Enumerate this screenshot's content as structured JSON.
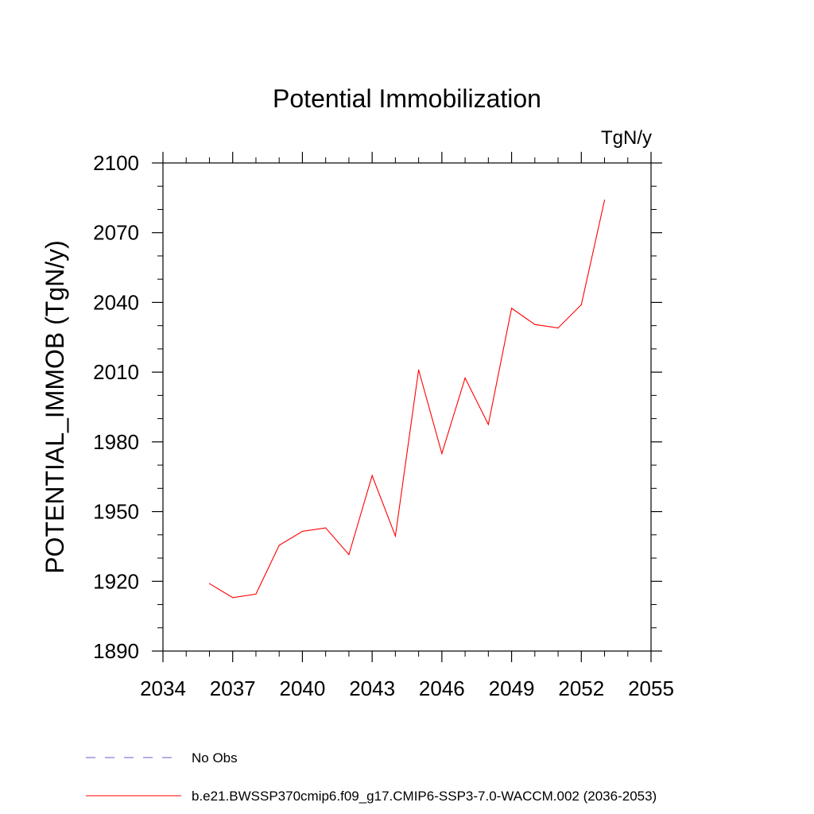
{
  "chart_data": {
    "type": "line",
    "title": "Potential Immobilization",
    "units_label": "TgN/y",
    "ylabel": "POTENTIAL_IMMOB  (TgN/y)",
    "xlabel": "",
    "xlim": [
      2034,
      2055
    ],
    "ylim": [
      1890,
      2100
    ],
    "xticks": [
      "2034",
      "2037",
      "2040",
      "2043",
      "2046",
      "2049",
      "2052",
      "2055"
    ],
    "yticks": [
      "1890",
      "1920",
      "1950",
      "1980",
      "2010",
      "2040",
      "2070",
      "2100"
    ],
    "grid": false,
    "legend_placement": "bottom",
    "series": [
      {
        "name": "b.e21.BWSSP370cmip6.f09_g17.CMIP6-SSP3-7.0-WACCM.002 (2036-2053)",
        "color": "#ff0000",
        "x": [
          2036,
          2037,
          2038,
          2039,
          2040,
          2041,
          2042,
          2043,
          2044,
          2045,
          2046,
          2047,
          2048,
          2049,
          2050,
          2051,
          2052,
          2053
        ],
        "y": [
          1919,
          1913,
          1914.5,
          1935.5,
          1941.5,
          1943,
          1931.5,
          1965.5,
          1939.5,
          2011,
          1975,
          2007.5,
          1987.5,
          2037.5,
          2030.5,
          2029,
          2039,
          2084
        ]
      }
    ],
    "legend": [
      {
        "name": "No Obs",
        "color": "#6a5acd",
        "style": "dashed"
      },
      {
        "name": "b.e21.BWSSP370cmip6.f09_g17.CMIP6-SSP3-7.0-WACCM.002 (2036-2053)",
        "color": "#ff0000",
        "style": "solid"
      }
    ]
  }
}
